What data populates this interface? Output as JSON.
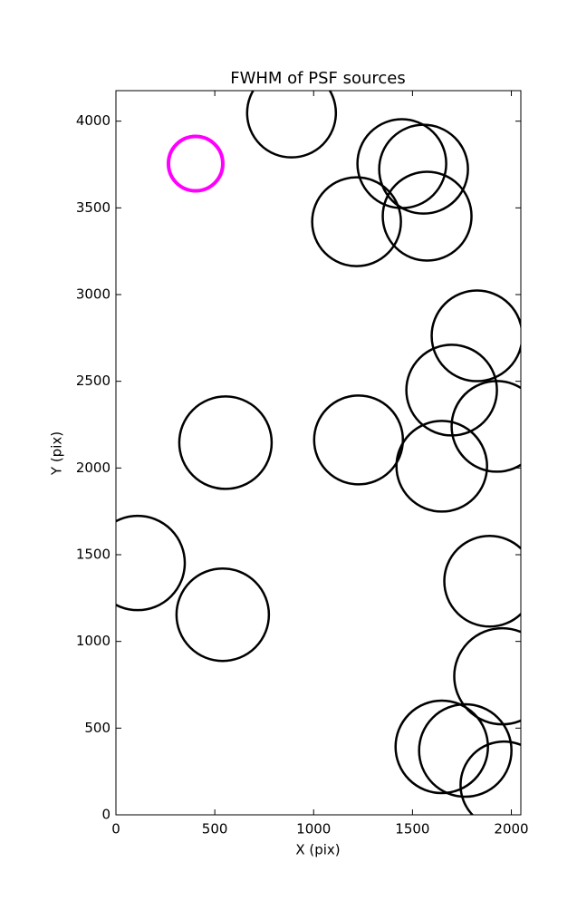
{
  "chart_data": {
    "type": "scatter",
    "title": "FWHM of PSF sources",
    "xlabel": "X (pix)",
    "ylabel": "Y (pix)",
    "x": [
      888,
      1446,
      1556,
      1217,
      1574,
      1826,
      1698,
      1927,
      554,
      1227,
      1648,
      110,
      1890,
      540,
      1954,
      1648,
      1767,
      1963,
      403
    ],
    "y": [
      4047,
      3755,
      3723,
      3420,
      3452,
      2762,
      2449,
      2240,
      2146,
      2162,
      2010,
      1452,
      1347,
      1154,
      799,
      392,
      371,
      172,
      3755
    ],
    "sizes": [
      49,
      49,
      49,
      49,
      49,
      50,
      50,
      50,
      51,
      49,
      50,
      52,
      50,
      51,
      53,
      51,
      51,
      48,
      30
    ],
    "colors": [
      "#000000",
      "#000000",
      "#000000",
      "#000000",
      "#000000",
      "#000000",
      "#000000",
      "#000000",
      "#000000",
      "#000000",
      "#000000",
      "#000000",
      "#000000",
      "#000000",
      "#000000",
      "#000000",
      "#000000",
      "#000000",
      "#ff00ff"
    ],
    "xlim": [
      0,
      2048
    ],
    "ylim": [
      0,
      4176
    ],
    "xticks": [
      0,
      500,
      1000,
      1500,
      2000
    ],
    "yticks": [
      0,
      500,
      1000,
      1500,
      2000,
      2500,
      3000,
      3500,
      4000
    ]
  }
}
